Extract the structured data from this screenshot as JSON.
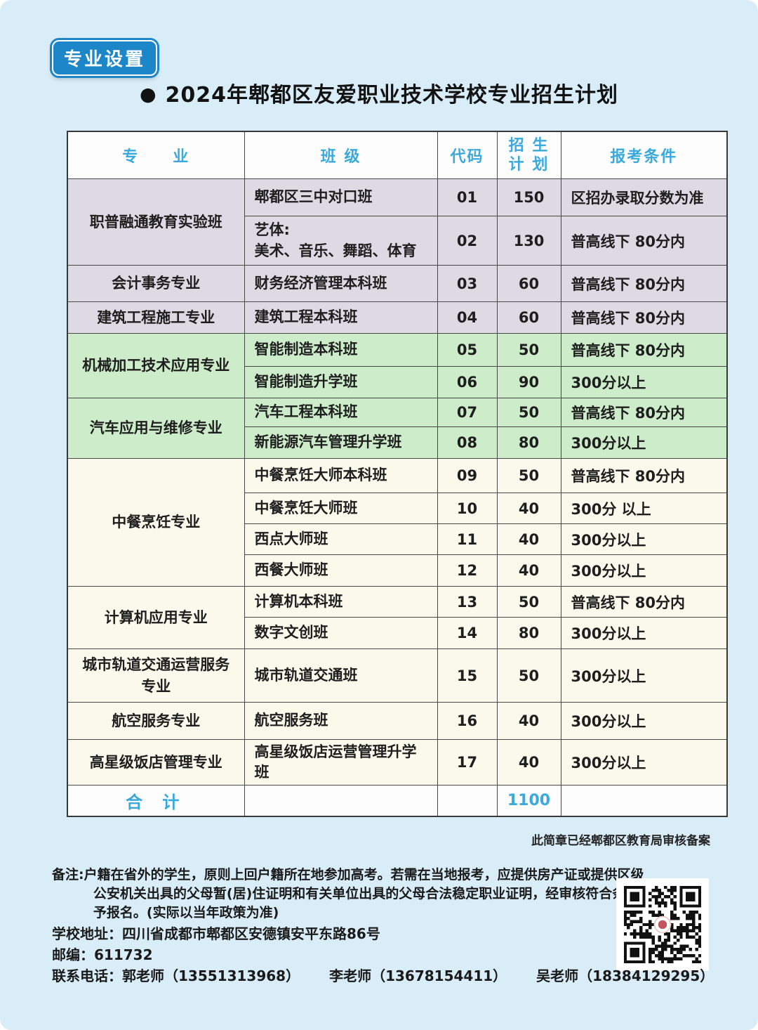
{
  "page": {
    "badge": "专业设置",
    "title_bullet": "●",
    "title": "2024年郫都区友爱职业技术学校专业招生计划"
  },
  "table": {
    "headers": {
      "major": "专　　业",
      "class": "班 级",
      "code": "代码",
      "plan_line1": "招 生",
      "plan_line2": "计 划",
      "requirement": "报考条件"
    },
    "groups": [
      {
        "major": "职普融通教育实验班",
        "theme": "lavender",
        "rows": [
          {
            "class": "郫都区三中对口班",
            "code": "01",
            "plan": "150",
            "requirement": "区招办录取分数为准"
          },
          {
            "class": "艺体:\n美术、音乐、舞蹈、体育",
            "code": "02",
            "plan": "130",
            "requirement": "普高线下 80分内"
          }
        ]
      },
      {
        "major": "会计事务专业",
        "theme": "lavender",
        "rows": [
          {
            "class": "财务经济管理本科班",
            "code": "03",
            "plan": "60",
            "requirement": "普高线下 80分内"
          }
        ]
      },
      {
        "major": "建筑工程施工专业",
        "theme": "lavender",
        "rows": [
          {
            "class": "建筑工程本科班",
            "code": "04",
            "plan": "60",
            "requirement": "普高线下 80分内"
          }
        ]
      },
      {
        "major": "机械加工技术应用专业",
        "theme": "green",
        "rows": [
          {
            "class": "智能制造本科班",
            "code": "05",
            "plan": "50",
            "requirement": "普高线下 80分内"
          },
          {
            "class": "智能制造升学班",
            "code": "06",
            "plan": "90",
            "requirement": "300分以上"
          }
        ]
      },
      {
        "major": "汽车应用与维修专业",
        "theme": "green",
        "rows": [
          {
            "class": "汽车工程本科班",
            "code": "07",
            "plan": "50",
            "requirement": "普高线下 80分内"
          },
          {
            "class": "新能源汽车管理升学班",
            "code": "08",
            "plan": "80",
            "requirement": "300分以上"
          }
        ]
      },
      {
        "major": "中餐烹饪专业",
        "theme": "cream",
        "rows": [
          {
            "class": "中餐烹饪大师本科班",
            "code": "09",
            "plan": "50",
            "requirement": "普高线下 80分内"
          },
          {
            "class": "中餐烹饪大师班",
            "code": "10",
            "plan": "40",
            "requirement": "300分 以上"
          },
          {
            "class": "西点大师班",
            "code": "11",
            "plan": "40",
            "requirement": "300分以上"
          },
          {
            "class": "西餐大师班",
            "code": "12",
            "plan": "40",
            "requirement": "300分以上"
          }
        ]
      },
      {
        "major": "计算机应用专业",
        "theme": "cream",
        "rows": [
          {
            "class": "计算机本科班",
            "code": "13",
            "plan": "50",
            "requirement": "普高线下 80分内"
          },
          {
            "class": "数字文创班",
            "code": "14",
            "plan": "80",
            "requirement": "300分以上"
          }
        ]
      },
      {
        "major": "城市轨道交通运营服务专业",
        "theme": "cream",
        "rows": [
          {
            "class": "城市轨道交通班",
            "code": "15",
            "plan": "50",
            "requirement": "300分以上"
          }
        ]
      },
      {
        "major": "航空服务专业",
        "theme": "cream",
        "rows": [
          {
            "class": "航空服务班",
            "code": "16",
            "plan": "40",
            "requirement": "300分以上"
          }
        ]
      },
      {
        "major": "高星级饭店管理专业",
        "theme": "cream",
        "rows": [
          {
            "class": "高星级饭店运营管理升学班",
            "code": "17",
            "plan": "40",
            "requirement": "300分以上"
          }
        ]
      }
    ],
    "total_label": "合 计",
    "total_value": "1100"
  },
  "footer": {
    "approval_note": "此简章已经郫都区教育局审核备案",
    "remark": "备注:户籍在省外的学生，原则上回户籍所在地参加高考。若需在当地报考，应提供房产证或提供区级公安机关出具的父母暂(居)住证明和有关单位出具的父母合法稳定职业证明，经审核符合条件准予报名。(实际以当年政策为准)",
    "address_line": "学校地址：四川省成都市郫都区安德镇安平东路86号",
    "postcode_line": "邮编：611732",
    "contact_label": "联系电话：",
    "teachers": [
      "郭老师（13551313968）",
      "李老师（13678154411）",
      "吴老师（18384129295）"
    ],
    "qr_label": "qr-code"
  },
  "colors": {
    "page_bg": "#d9edf8",
    "badge_blue": "#1d86c8",
    "header_text": "#3aa9dc",
    "lavender_row": "#dedae3",
    "green_row": "#cdecca",
    "cream_row": "#faf9ec",
    "table_border": "#474747"
  }
}
